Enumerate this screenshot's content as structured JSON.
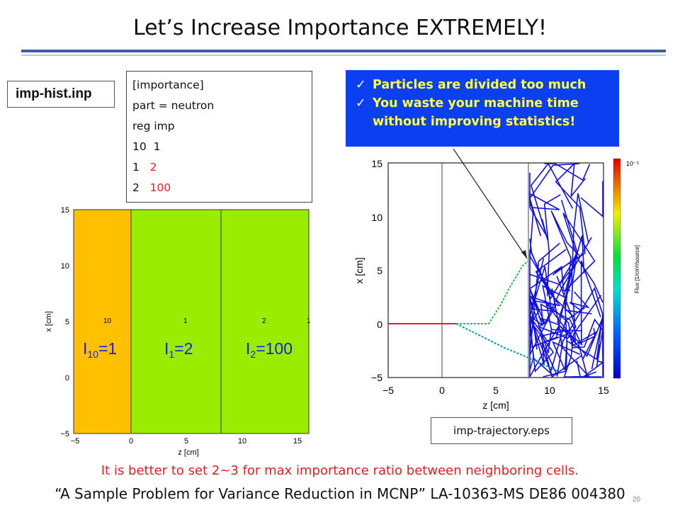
{
  "slide": {
    "title": "Let’s Increase Importance EXTREMELY!",
    "file_label": "imp-hist.inp",
    "input_lines": [
      {
        "a": "[importance]",
        "b": ""
      },
      {
        "a": "part = neutron",
        "b": ""
      },
      {
        "a": "reg imp",
        "b": ""
      },
      {
        "a": "10  1",
        "b": ""
      },
      {
        "a": "1   ",
        "b": "2"
      },
      {
        "a": "2   ",
        "b": "100"
      }
    ],
    "callout": [
      "Particles are divided too much",
      "You waste your machine time",
      "without improving statistics!"
    ],
    "trajectory_label": "imp-trajectory.eps",
    "footnote_red": "It is better to set 2~3 for max importance ratio between neighboring cells.",
    "footnote_ref": "“A Sample Problem for Variance Reduction in MCNP” LA-10363-MS DE86 004380",
    "page_number": "20"
  },
  "colors": {
    "rule": "#3a5fa8",
    "callout_bg": "#0b3ff2",
    "callout_text": "#ffff3f",
    "region10": "#ffc000",
    "region1": "#99ee00",
    "region2": "#99ee00",
    "importance_label": "#1a1aff",
    "red": "#e02020",
    "trajectory": "#1010e0"
  },
  "left_plot": {
    "xlabel": "z [cm]",
    "ylabel": "x [cm]",
    "xticks": [
      "−5",
      "0",
      "5",
      "10",
      "15"
    ],
    "yticks": [
      "15",
      "10",
      "5",
      "0",
      "−5"
    ],
    "cell_ids": [
      "10",
      "1",
      "2",
      "1"
    ],
    "importance_labels": [
      {
        "base": "I",
        "sub": "10",
        "val": "=1"
      },
      {
        "base": "I",
        "sub": "1",
        "val": "=2"
      },
      {
        "base": "I",
        "sub": "2",
        "val": "=100"
      }
    ]
  },
  "right_plot": {
    "xlabel": "z [cm]",
    "ylabel": "x [cm]",
    "xticks": [
      "−5",
      "0",
      "5",
      "10",
      "15"
    ],
    "yticks": [
      "15",
      "10",
      "5",
      "0",
      "−5"
    ],
    "colorbar_max_label": "10⁻¹",
    "colorbar_label": "Flux [1/cm²/source]"
  }
}
